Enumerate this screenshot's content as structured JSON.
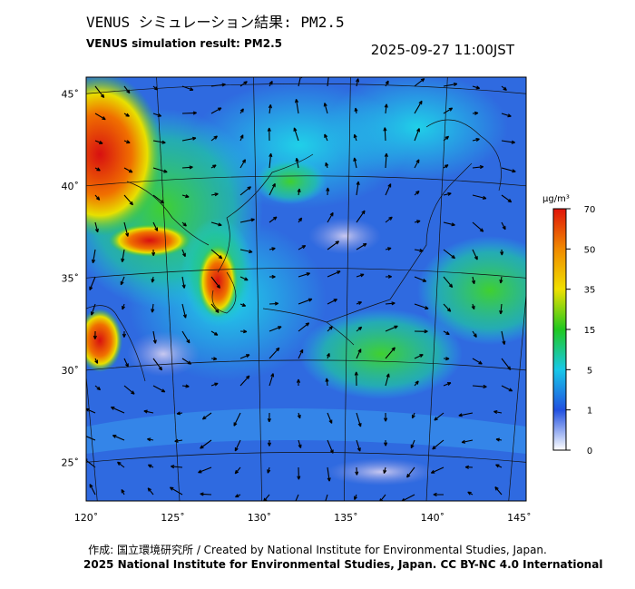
{
  "title": "VENUS シミュレーション結果: PM2.5",
  "subtitle": "VENUS simulation result: PM2.5",
  "timestamp": "2025-09-27 11:00JST",
  "map": {
    "lonlim": [
      120,
      145.4
    ],
    "latlim": [
      22.9,
      45.9
    ],
    "lonticks": [
      {
        "value": 120,
        "label": "120˚"
      },
      {
        "value": 125,
        "label": "125˚"
      },
      {
        "value": 130,
        "label": "130˚"
      },
      {
        "value": 135,
        "label": "135˚"
      },
      {
        "value": 140,
        "label": "140˚"
      },
      {
        "value": 145,
        "label": "145˚"
      }
    ],
    "latticks": [
      {
        "value": 45,
        "label": "45˚"
      },
      {
        "value": 40,
        "label": "40˚"
      },
      {
        "value": 35,
        "label": "35˚"
      },
      {
        "value": 30,
        "label": "30˚"
      },
      {
        "value": 25,
        "label": "25˚"
      }
    ]
  },
  "colorbar": {
    "unit": "μg/m³",
    "ticks": [
      70,
      50,
      35,
      15,
      5,
      1,
      0
    ],
    "colors": [
      "#e0140a",
      "#f08a00",
      "#f0e000",
      "#20c820",
      "#18c8e8",
      "#2050e0",
      "#ffffff"
    ]
  },
  "credit": "作成: 国立環境研究所 / Created by National Institute for Environmental Studies, Japan.",
  "license": "2025 National Institute for Environmental Studies, Japan. CC BY-NC 4.0 International"
}
